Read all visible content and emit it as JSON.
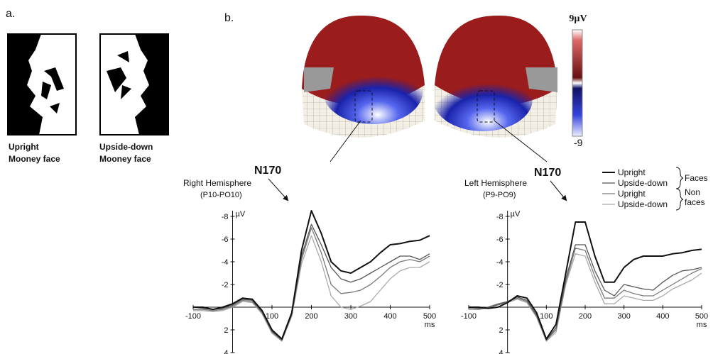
{
  "panel_a": {
    "label": "a.",
    "faces": [
      {
        "lines": [
          "Upright",
          "Mooney face"
        ]
      },
      {
        "lines": [
          "Upside-down",
          "Mooney face"
        ]
      }
    ]
  },
  "panel_b": {
    "label": "b.",
    "colorbar": {
      "max_label": "9µV",
      "min_label": "-9"
    },
    "annotations": [
      "N170",
      "N170"
    ]
  },
  "legend": {
    "groups": [
      [
        "Faces"
      ],
      [
        "Non",
        "faces"
      ]
    ]
  },
  "chart_data": [
    {
      "type": "line",
      "title": "Right Hemisphere",
      "subtitle": "(P10-PO10)",
      "y_unit": "µV",
      "x_unit": "ms",
      "x": [
        -100,
        -75,
        -50,
        -25,
        0,
        25,
        50,
        75,
        100,
        125,
        150,
        175,
        200,
        225,
        250,
        275,
        300,
        325,
        350,
        375,
        400,
        425,
        450,
        475,
        500
      ],
      "xlim": [
        -100,
        500
      ],
      "xticks": [
        -100,
        100,
        200,
        300,
        400,
        500
      ],
      "ylim": [
        4,
        -8.5
      ],
      "yticks": [
        -8,
        -6,
        -4,
        -2,
        2,
        4
      ],
      "series": [
        {
          "color": "#111111",
          "values": [
            0,
            0,
            0.2,
            0,
            -0.3,
            -0.8,
            -0.7,
            0.3,
            2.0,
            2.8,
            0.5,
            -5,
            -8.5,
            -6.5,
            -4,
            -3.2,
            -3,
            -3.5,
            -4,
            -4.8,
            -5.5,
            -5.6,
            -5.8,
            -5.9,
            -6.3
          ]
        },
        {
          "color": "#555555",
          "values": [
            0,
            0.1,
            0.2,
            0.1,
            -0.2,
            -0.7,
            -0.6,
            0.4,
            2.1,
            2.9,
            0.6,
            -4.5,
            -7.3,
            -5.5,
            -3.5,
            -2.5,
            -2.2,
            -2.5,
            -3,
            -3.5,
            -4,
            -4.5,
            -4.5,
            -4.2,
            -4.7
          ]
        },
        {
          "color": "#7a7a7a",
          "values": [
            0.2,
            0.2,
            0.3,
            0.2,
            -0.1,
            -0.6,
            -0.5,
            0.5,
            2.2,
            2.9,
            0.7,
            -4.2,
            -7,
            -4.8,
            -2,
            -1.2,
            -1.3,
            -1.5,
            -2,
            -2.7,
            -3.5,
            -4,
            -4.2,
            -4,
            -4.5
          ]
        },
        {
          "color": "#aaaaaa",
          "values": [
            0.3,
            0.3,
            0.4,
            0.3,
            0,
            -0.5,
            -0.4,
            0.6,
            2.3,
            3.0,
            0.8,
            -3.8,
            -6.3,
            -4,
            -1,
            0,
            0.2,
            -0.1,
            -0.5,
            -1.5,
            -2.5,
            -3.2,
            -3.5,
            -3.5,
            -4
          ]
        }
      ]
    },
    {
      "type": "line",
      "title": "Left Hemisphere",
      "subtitle": "(P9-PO9)",
      "y_unit": "µV",
      "x_unit": "ms",
      "x": [
        -100,
        -75,
        -50,
        -25,
        0,
        25,
        50,
        75,
        100,
        125,
        150,
        175,
        200,
        225,
        250,
        275,
        300,
        325,
        350,
        375,
        400,
        425,
        450,
        475,
        500
      ],
      "xlim": [
        -100,
        500
      ],
      "xticks": [
        -100,
        100,
        200,
        300,
        400,
        500
      ],
      "ylim": [
        4,
        -8.5
      ],
      "yticks": [
        -8,
        -6,
        -4,
        -2,
        2,
        4
      ],
      "series": [
        {
          "name": "Upright",
          "color": "#111111",
          "values": [
            0,
            0,
            0.1,
            0,
            -0.4,
            -1,
            -0.8,
            0.5,
            2.8,
            1.5,
            -3,
            -7.5,
            -7.5,
            -4.5,
            -2.2,
            -2.2,
            -3.5,
            -4.2,
            -4.5,
            -4.5,
            -4.5,
            -4.7,
            -4.8,
            -5,
            -5.1
          ]
        },
        {
          "name": "Upside-down",
          "color": "#555555",
          "values": [
            0,
            0.1,
            0,
            -0.2,
            -0.5,
            -0.9,
            -0.6,
            0.7,
            2.9,
            1.8,
            -2.5,
            -5.5,
            -5.5,
            -3.2,
            -1.5,
            -1,
            -2,
            -1.8,
            -1.6,
            -1.5,
            -2.2,
            -2.8,
            -3.2,
            -3.3,
            -3.5
          ]
        },
        {
          "name": "Upright",
          "color": "#7a7a7a",
          "values": [
            0.1,
            0.2,
            0,
            -0.3,
            -0.5,
            -0.8,
            -0.5,
            0.8,
            2.9,
            2.0,
            -2.2,
            -5.2,
            -5,
            -2.7,
            -0.8,
            -0.8,
            -1.5,
            -1.2,
            -1,
            -1,
            -1.5,
            -2,
            -2.5,
            -3,
            -3.4
          ]
        },
        {
          "name": "Upside-down",
          "color": "#aaaaaa",
          "values": [
            0.2,
            0.2,
            0.1,
            -0.2,
            -0.4,
            -0.7,
            -0.4,
            0.9,
            3.0,
            2.2,
            -2,
            -4.7,
            -4.5,
            -2.2,
            -0.3,
            -0.3,
            -1,
            -0.8,
            -0.6,
            -0.6,
            -1,
            -1.6,
            -2,
            -2.4,
            -3
          ]
        }
      ]
    }
  ]
}
